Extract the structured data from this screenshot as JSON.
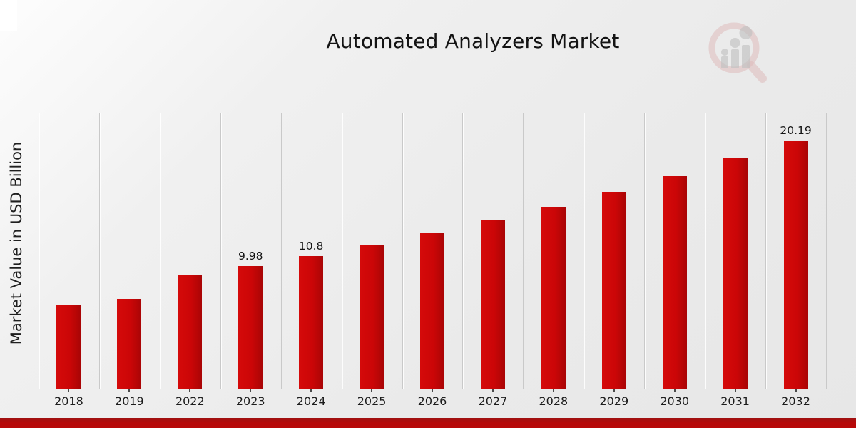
{
  "chart_data": {
    "type": "bar",
    "title": "Automated Analyzers Market",
    "ylabel": "Market Value in USD Billion",
    "xlabel": "",
    "categories": [
      "2018",
      "2019",
      "2022",
      "2023",
      "2024",
      "2025",
      "2026",
      "2027",
      "2028",
      "2029",
      "2030",
      "2031",
      "2032"
    ],
    "values": [
      6.8,
      7.3,
      9.22,
      9.98,
      10.8,
      11.68,
      12.64,
      13.67,
      14.79,
      16.0,
      17.31,
      18.73,
      20.19
    ],
    "bar_labels": {
      "2023": "9.98",
      "2024": "10.8",
      "2032": "20.19"
    },
    "ylim": [
      0,
      22.4
    ],
    "grid": "vertical category separators, no horizontal gridlines, no y tick labels",
    "legend": "none",
    "bar_color": "#cb0607",
    "accent_band_color": "#b50909",
    "background_color": "#ebebeb",
    "text_color": "#1c1c1c"
  },
  "icons": {
    "logo_icon": "magnifier-bar-chart-watermark-icon"
  }
}
